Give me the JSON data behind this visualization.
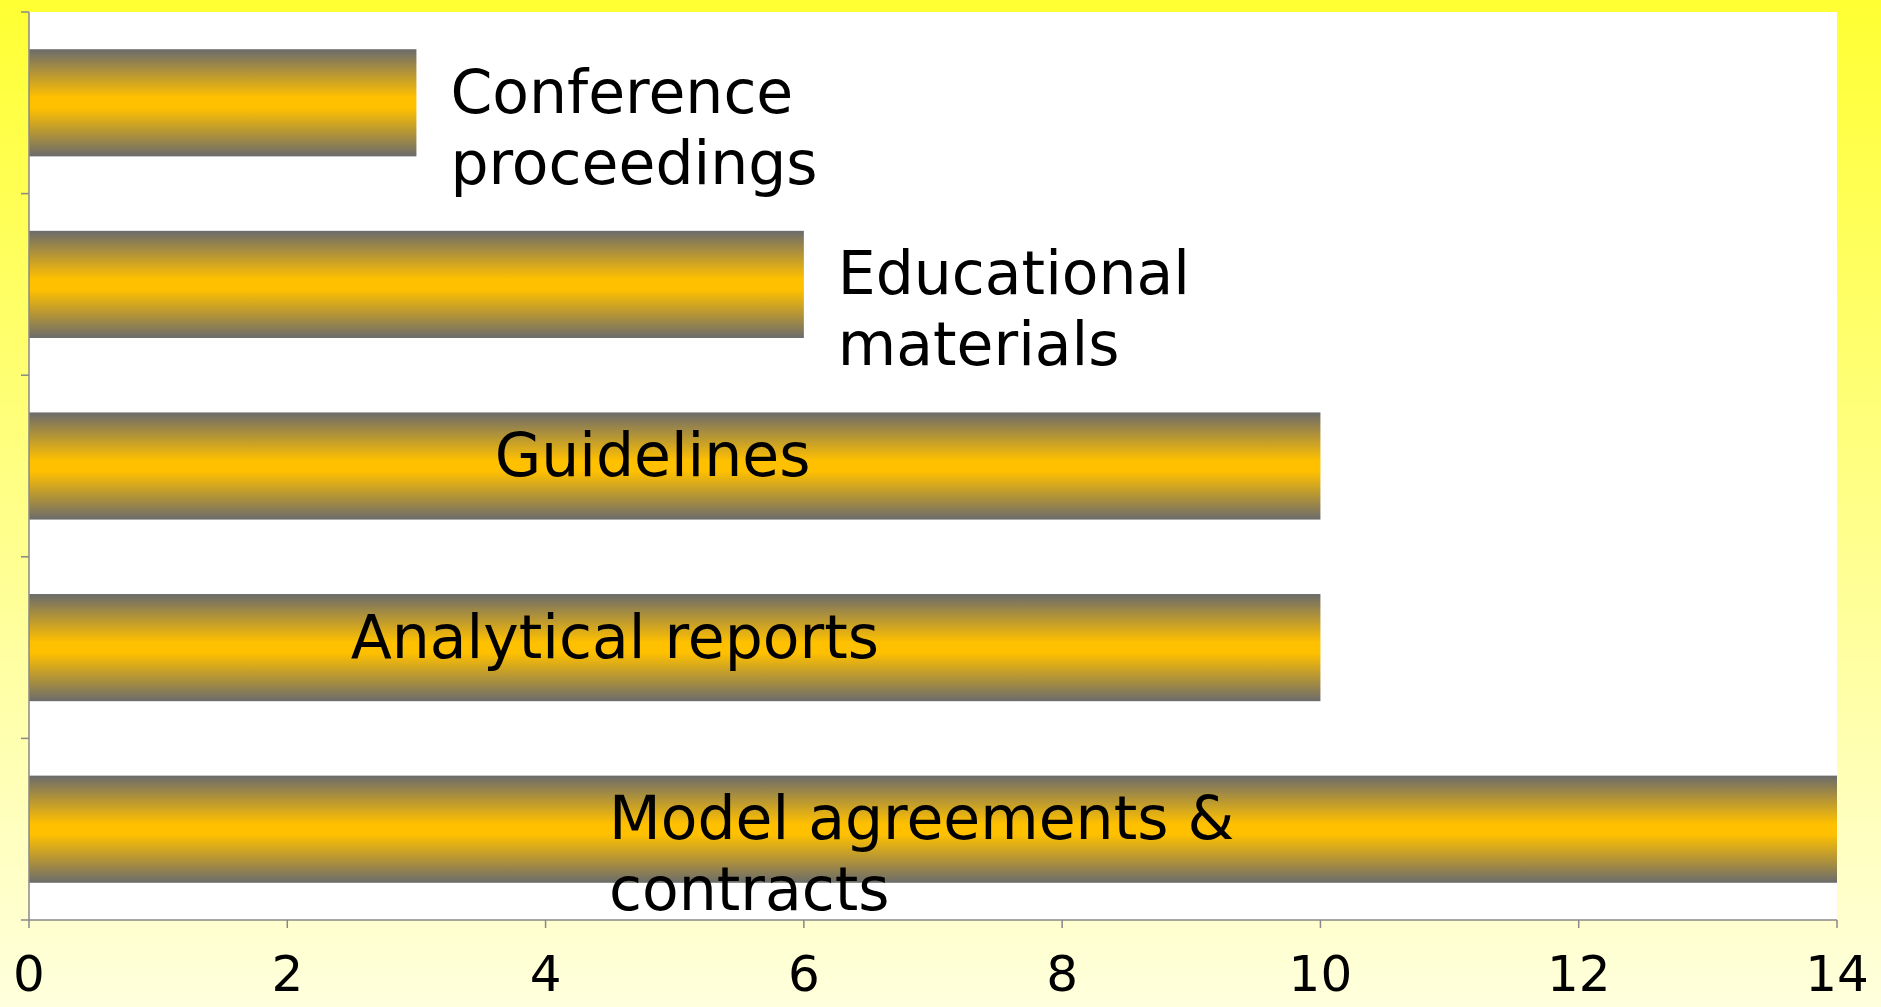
{
  "chart_data": {
    "type": "bar",
    "orientation": "horizontal",
    "categories": [
      "Conference proceedings",
      "Educational materials",
      "Guidelines",
      "Analytical reports",
      "Model agreements & contracts"
    ],
    "values": [
      3,
      6,
      10,
      10,
      14
    ],
    "color": "#ffc000",
    "xlim": [
      0,
      14
    ],
    "xticks": [
      0,
      2,
      4,
      6,
      8,
      10,
      12,
      14
    ],
    "grid": false,
    "tick_labels": "x"
  }
}
